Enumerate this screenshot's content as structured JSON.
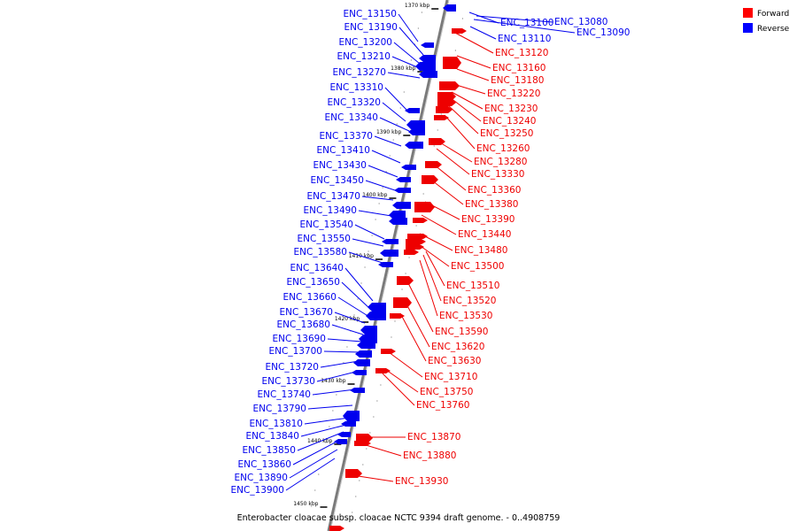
{
  "caption": "Enterobacter cloacae subsp. cloacae NCTC 9394 draft genome. - 0..4908759",
  "legend": [
    {
      "label": "Forward",
      "color": "#ff0000"
    },
    {
      "label": "Reverse",
      "color": "#0000ff"
    }
  ],
  "colors": {
    "forward": "#ee0000",
    "reverse": "#0000ee",
    "backbone": "#808080"
  },
  "scale_labels": [
    "1370 kbp",
    "1380 kbp",
    "1390 kbp",
    "1400 kbp",
    "1410 kbp",
    "1420 kbp",
    "1430 kbp",
    "1440 kbp",
    "1450 kbp"
  ],
  "reverse_genes": [
    "ENC_13100",
    "ENC_13080",
    "ENC_13090",
    "ENC_13110",
    "ENC_13150",
    "ENC_13190",
    "ENC_13200",
    "ENC_13210",
    "ENC_13270",
    "ENC_13310",
    "ENC_13320",
    "ENC_13340",
    "ENC_13370",
    "ENC_13410",
    "ENC_13430",
    "ENC_13450",
    "ENC_13470",
    "ENC_13490",
    "ENC_13540",
    "ENC_13550",
    "ENC_13580",
    "ENC_13640",
    "ENC_13650",
    "ENC_13660",
    "ENC_13670",
    "ENC_13680",
    "ENC_13690",
    "ENC_13700",
    "ENC_13720",
    "ENC_13730",
    "ENC_13740",
    "ENC_13790",
    "ENC_13810",
    "ENC_13840",
    "ENC_13850",
    "ENC_13860",
    "ENC_13890",
    "ENC_13900"
  ],
  "forward_genes": [
    "ENC_13120",
    "ENC_13160",
    "ENC_13180",
    "ENC_13220",
    "ENC_13230",
    "ENC_13240",
    "ENC_13250",
    "ENC_13260",
    "ENC_13280",
    "ENC_13330",
    "ENC_13360",
    "ENC_13380",
    "ENC_13390",
    "ENC_13440",
    "ENC_13480",
    "ENC_13500",
    "ENC_13510",
    "ENC_13520",
    "ENC_13530",
    "ENC_13590",
    "ENC_13620",
    "ENC_13630",
    "ENC_13710",
    "ENC_13750",
    "ENC_13760",
    "ENC_13870",
    "ENC_13880",
    "ENC_13930"
  ]
}
